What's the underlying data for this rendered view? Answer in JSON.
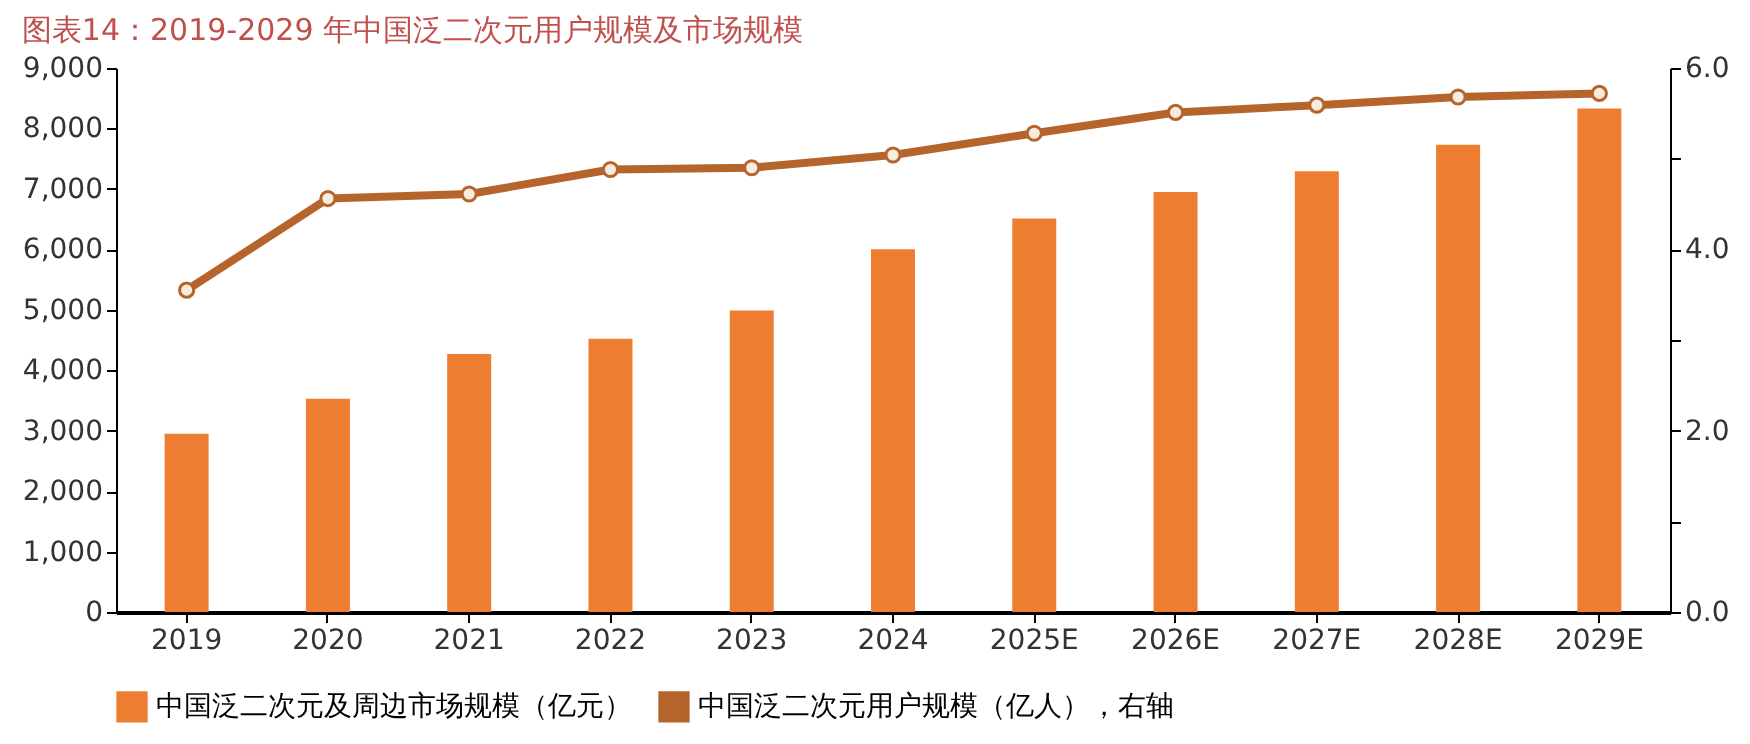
{
  "chart_data": {
    "type": "bar",
    "title": "图表14：2019-2029 年中国泛二次元用户规模及市场规模",
    "categories": [
      "2019",
      "2020",
      "2021",
      "2022",
      "2023",
      "2024",
      "2025E",
      "2026E",
      "2027E",
      "2028E",
      "2029E"
    ],
    "series": [
      {
        "name": "中国泛二次元及周边市场规模（亿元）",
        "color": "#ed7d31",
        "values": [
          2950,
          3530,
          4270,
          4520,
          4990,
          6000,
          6510,
          6950,
          7290,
          7730,
          8330
        ]
      },
      {
        "name": "中国泛二次元用户规模（亿人），右轴",
        "type": "line",
        "axis": "y2",
        "color": "#b5652c",
        "marker": "circle",
        "line_style": "solid",
        "values": [
          3.55,
          4.56,
          4.61,
          4.88,
          4.9,
          5.04,
          5.28,
          5.51,
          5.59,
          5.68,
          5.72
        ]
      }
    ],
    "ylim": [
      0,
      9000
    ],
    "yticks": [
      {
        "value": 0,
        "label": "0"
      },
      {
        "value": 1000,
        "label": "1,000"
      },
      {
        "value": 2000,
        "label": "2,000"
      },
      {
        "value": 3000,
        "label": "3,000"
      },
      {
        "value": 4000,
        "label": "4,000"
      },
      {
        "value": 5000,
        "label": "5,000"
      },
      {
        "value": 6000,
        "label": "6,000"
      },
      {
        "value": 7000,
        "label": "7,000"
      },
      {
        "value": 8000,
        "label": "8,000"
      },
      {
        "value": 9000,
        "label": "9,000"
      }
    ],
    "y2lim": [
      0,
      6
    ],
    "y2ticks": [
      {
        "value": 0,
        "label": "0.0"
      },
      {
        "value": 1,
        "label": null
      },
      {
        "value": 2,
        "label": "2.0"
      },
      {
        "value": 3,
        "label": null
      },
      {
        "value": 4,
        "label": "4.0"
      },
      {
        "value": 5,
        "label": null
      },
      {
        "value": 6,
        "label": "6.0"
      }
    ],
    "grid": false,
    "legend": "bottom"
  }
}
